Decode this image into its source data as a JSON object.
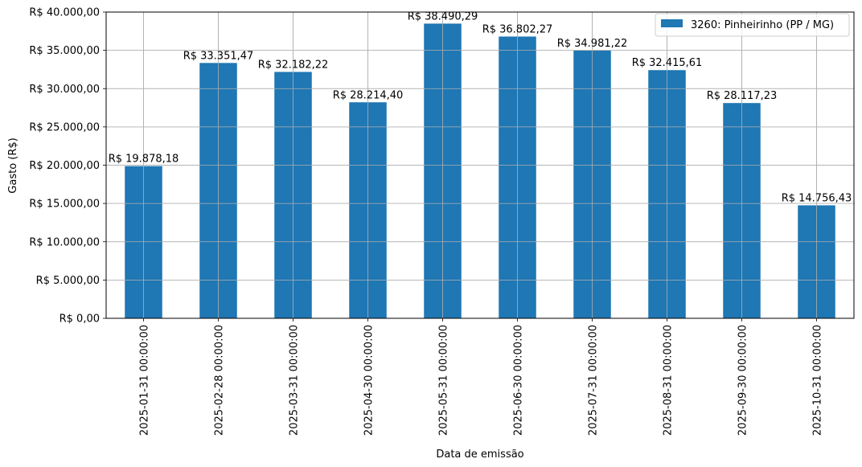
{
  "chart_data": {
    "type": "bar",
    "categories": [
      "2025-01-31 00:00:00",
      "2025-02-28 00:00:00",
      "2025-03-31 00:00:00",
      "2025-04-30 00:00:00",
      "2025-05-31 00:00:00",
      "2025-06-30 00:00:00",
      "2025-07-31 00:00:00",
      "2025-08-31 00:00:00",
      "2025-09-30 00:00:00",
      "2025-10-31 00:00:00"
    ],
    "series": [
      {
        "name": "3260: Pinheirinho (PP / MG)",
        "values": [
          19878.18,
          33351.47,
          32182.22,
          28214.4,
          38490.29,
          36802.27,
          34981.22,
          32415.61,
          28117.23,
          14756.43
        ],
        "data_labels": [
          "R$ 19.878,18",
          "R$ 33.351,47",
          "R$ 32.182,22",
          "R$ 28.214,40",
          "R$ 38.490,29",
          "R$ 36.802,27",
          "R$ 34.981,22",
          "R$ 32.415,61",
          "R$ 28.117,23",
          "R$ 14.756,43"
        ],
        "color": "#1f77b4"
      }
    ],
    "xlabel": "Data de emissão",
    "ylabel": "Gasto (R$)",
    "ylim": [
      0,
      40000
    ],
    "yticks": [
      0,
      5000,
      10000,
      15000,
      20000,
      25000,
      30000,
      35000,
      40000
    ],
    "ytick_labels": [
      "R$ 0,00",
      "R$ 5.000,00",
      "R$ 10.000,00",
      "R$ 15.000,00",
      "R$ 20.000,00",
      "R$ 25.000,00",
      "R$ 30.000,00",
      "R$ 35.000,00",
      "R$ 40.000,00"
    ],
    "grid": true,
    "legend_position": "top-right"
  }
}
